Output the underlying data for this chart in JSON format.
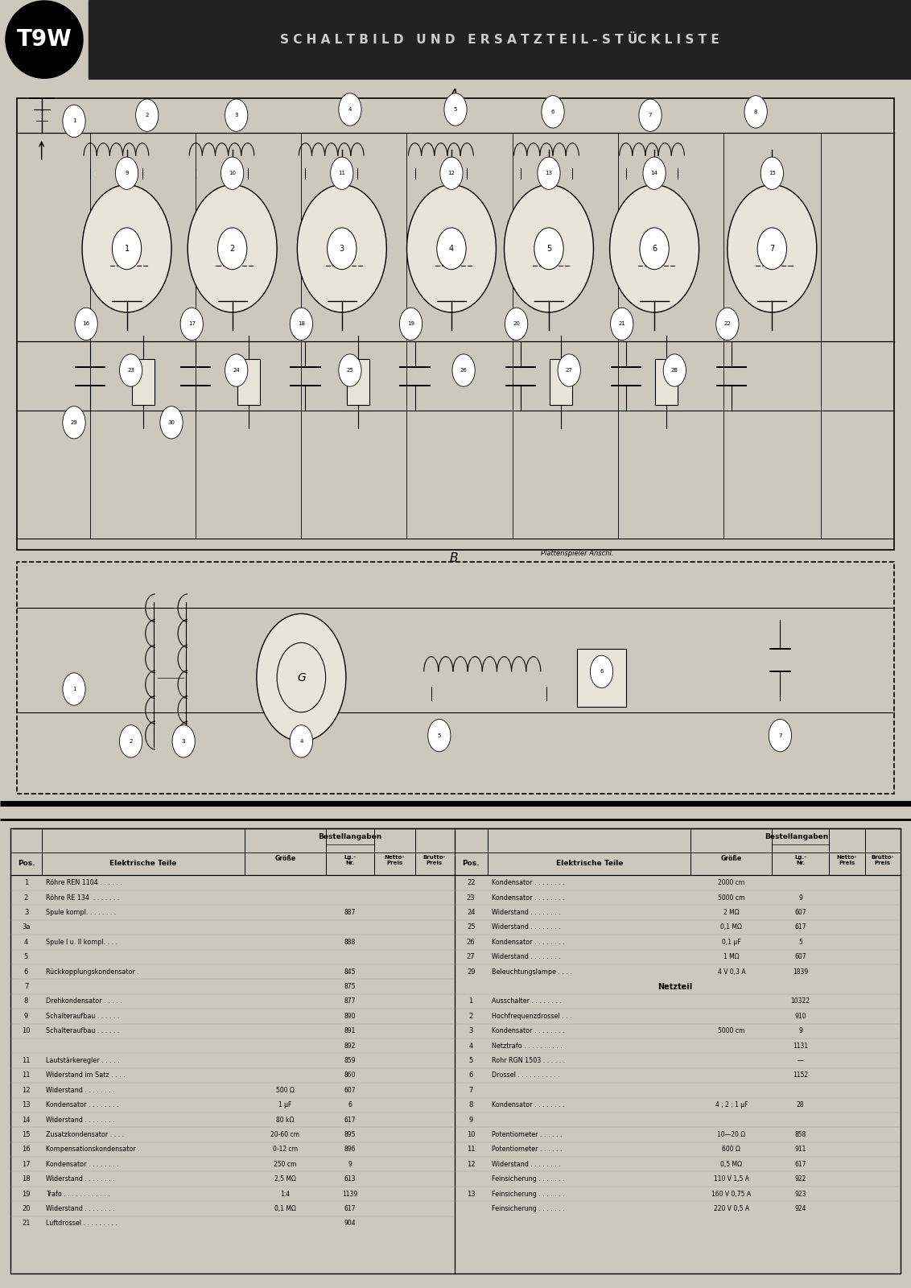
{
  "title": "SCHALTBILD  UND  ERSATZTEIL-STUCKLISTE",
  "title_display": "S C H A L T B I L D   U N D   E R S A T Z T E I L - S T ÜC K L I S T E",
  "model": "T9W",
  "bg_color": "#ccc8bc",
  "header_bg": "#1a1a1a",
  "table_bg": "#dedad0",
  "left_table_rows": [
    [
      "1",
      "Röhre REN 1104 . . . . . .",
      "",
      ""
    ],
    [
      "2",
      "Röhre RE 134  . . . . . . .",
      "",
      ""
    ],
    [
      "3",
      "Spule kompl. . . . . . . .",
      "",
      "887"
    ],
    [
      "3a",
      "",
      "",
      ""
    ],
    [
      "4",
      "Spule I u. II kompl. . . .",
      "",
      "888"
    ],
    [
      "5",
      "",
      "",
      ""
    ],
    [
      "6",
      "Rückkopplungskondensator .",
      "",
      "845"
    ],
    [
      "7",
      "",
      "",
      "875"
    ],
    [
      "8",
      "Drehkondensator . . . . .",
      "",
      "877"
    ],
    [
      "9",
      "Schalteraufbau . . . . . .",
      "",
      "890"
    ],
    [
      "10",
      "Schalteraufbau . . . . . .",
      "",
      "891"
    ],
    [
      "",
      "",
      "",
      "892"
    ],
    [
      "11",
      "Lautstärkeregler . . . . .",
      "",
      "859"
    ],
    [
      "11",
      "Widerstand im Satz . . . .",
      "",
      "860"
    ],
    [
      "12",
      "Widerstand . . . . . . . .",
      "500 Ω",
      "607"
    ],
    [
      "13",
      "Kondensator . . . . . . . .",
      "1 μF",
      "6"
    ],
    [
      "14",
      "Widerstand . . . . . . . .",
      "80 kΩ",
      "617"
    ],
    [
      "15",
      "Zusatzkondensator . . . .",
      "20-60 cm",
      "895"
    ],
    [
      "16",
      "Kompensationskondensator .",
      "0-12 cm",
      "896"
    ],
    [
      "17",
      "Kondensator . . . . . . . .",
      "250 cm",
      "9"
    ],
    [
      "18",
      "Widerstand . . . . . . . .",
      "2,5 MΩ",
      "613"
    ],
    [
      "19",
      "Trafo . . . . . . . . . . . .",
      "1:4",
      "1139"
    ],
    [
      "20",
      "Widerstand . . . . . . . .",
      "0,1 MΩ",
      "617"
    ],
    [
      "21",
      "Luftdrossel . . . . . . . . .",
      "",
      "904"
    ]
  ],
  "right_table_rows": [
    [
      "22",
      "Kondensator . . . . . . . .",
      "2000 cm",
      ""
    ],
    [
      "23",
      "Kondensator . . . . . . . .",
      "5000 cm",
      "9"
    ],
    [
      "24",
      "Widerstand . . . . . . . .",
      "2 MΩ",
      "607"
    ],
    [
      "25",
      "Widerstand . . . . . . . .",
      "0,1 MΩ",
      "617"
    ],
    [
      "26",
      "Kondensator . . . . . . . .",
      "0,1 μF",
      "5"
    ],
    [
      "27",
      "Widerstand . . . . . . . .",
      "1 MΩ",
      "607"
    ],
    [
      "29",
      "Beleuchtungslampe . . . .",
      "4 V 0,3 A",
      "1839"
    ]
  ],
  "netzteil_rows": [
    [
      "1",
      "Ausschalter . . . . . . . .",
      "",
      "10322"
    ],
    [
      "2",
      "Hochfrequenzdrossel . . .",
      "",
      "910"
    ],
    [
      "3",
      "Kondensator . . . . . . . .",
      "5000 cm",
      "9"
    ],
    [
      "4",
      "Netztrafo . . . . . . . . . .",
      "",
      "1131"
    ],
    [
      "5",
      "Rohr RGN 1503 . . . . . .",
      "",
      "—"
    ],
    [
      "6",
      "Drossel . . . . . . . . . . .",
      "",
      "1152"
    ],
    [
      "7",
      "",
      "",
      ""
    ],
    [
      "8",
      "Kondensator . . . . . . . .",
      "4 ; 2 ; 1 μF",
      "28"
    ],
    [
      "9",
      "",
      "",
      ""
    ],
    [
      "10",
      "Potentiometer . . . . . .",
      "10—20 Ω",
      "858"
    ],
    [
      "11",
      "Potentiometer . . . . . .",
      "600 Ω",
      "911"
    ],
    [
      "12",
      "Widerstand . . . . . . . .",
      "0,5 MΩ",
      "617"
    ],
    [
      "",
      "Feinsicherung . . . . . . .",
      "110 V 1,5 A",
      "922"
    ],
    [
      "13",
      "Feinsicherung . . . . . . .",
      "160 V 0,75 A",
      "923"
    ],
    [
      "",
      "Feinsicherung . . . . . . .",
      "220 V 0,5 A",
      "924"
    ]
  ]
}
